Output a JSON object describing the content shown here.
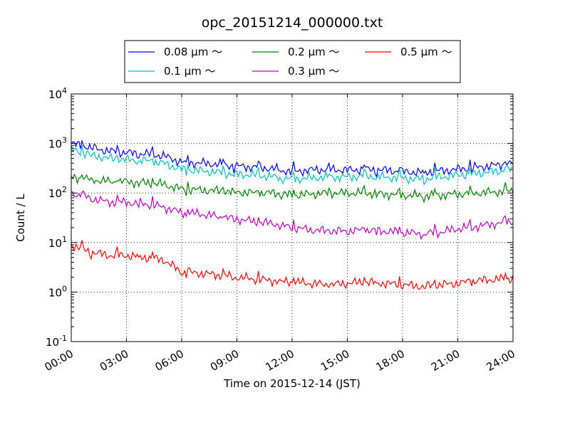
{
  "chart_data": {
    "type": "line",
    "title": "opc_20151214_000000.txt",
    "xlabel": "Time on 2015-12-14 (JST)",
    "ylabel": "Count / L",
    "x_unit": "hours",
    "xlim": [
      0,
      24
    ],
    "ylim": [
      0.1,
      10000
    ],
    "yscale": "log",
    "grid": true,
    "legend_position": "top-center, outside plot",
    "x_ticks": [
      "00:00",
      "03:00",
      "06:00",
      "09:00",
      "12:00",
      "15:00",
      "18:00",
      "21:00",
      "24:00"
    ],
    "y_ticks": [
      {
        "base": "10",
        "exp": "-1"
      },
      {
        "base": "10",
        "exp": "0"
      },
      {
        "base": "10",
        "exp": "1"
      },
      {
        "base": "10",
        "exp": "2"
      },
      {
        "base": "10",
        "exp": "3"
      },
      {
        "base": "10",
        "exp": "4"
      }
    ],
    "x": [
      0,
      1,
      2,
      3,
      4,
      5,
      6,
      7,
      8,
      9,
      10,
      11,
      12,
      13,
      14,
      15,
      16,
      17,
      18,
      19,
      20,
      21,
      22,
      23,
      24
    ],
    "series": [
      {
        "name": "0.08 μm ～",
        "color": "#0000ff",
        "values": [
          980,
          850,
          700,
          650,
          620,
          560,
          420,
          400,
          380,
          350,
          330,
          310,
          270,
          290,
          300,
          290,
          300,
          290,
          270,
          260,
          280,
          300,
          330,
          360,
          400
        ]
      },
      {
        "name": "0.1 μm ～",
        "color": "#00bfbf",
        "values": [
          750,
          600,
          500,
          470,
          450,
          400,
          300,
          280,
          260,
          240,
          230,
          210,
          190,
          200,
          210,
          210,
          220,
          210,
          200,
          190,
          210,
          230,
          250,
          270,
          300
        ]
      },
      {
        "name": "0.2 μm ～",
        "color": "#008000",
        "values": [
          210,
          190,
          170,
          170,
          160,
          150,
          120,
          115,
          110,
          105,
          100,
          100,
          90,
          95,
          100,
          100,
          100,
          95,
          90,
          88,
          90,
          95,
          100,
          105,
          110
        ]
      },
      {
        "name": "0.3 μm ～",
        "color": "#bf00bf",
        "values": [
          100,
          80,
          65,
          65,
          60,
          52,
          40,
          38,
          33,
          30,
          26,
          24,
          20,
          18,
          17,
          17,
          18,
          17,
          16,
          15,
          16,
          19,
          21,
          24,
          27
        ]
      },
      {
        "name": "0.5 μm ～",
        "color": "#ff0000",
        "values": [
          9,
          6.5,
          5.5,
          5.5,
          5,
          4.5,
          2.5,
          2.4,
          2.2,
          2,
          1.8,
          1.7,
          1.6,
          1.5,
          1.4,
          1.5,
          1.6,
          1.5,
          1.4,
          1.3,
          1.4,
          1.5,
          1.7,
          1.8,
          1.9
        ]
      }
    ]
  }
}
